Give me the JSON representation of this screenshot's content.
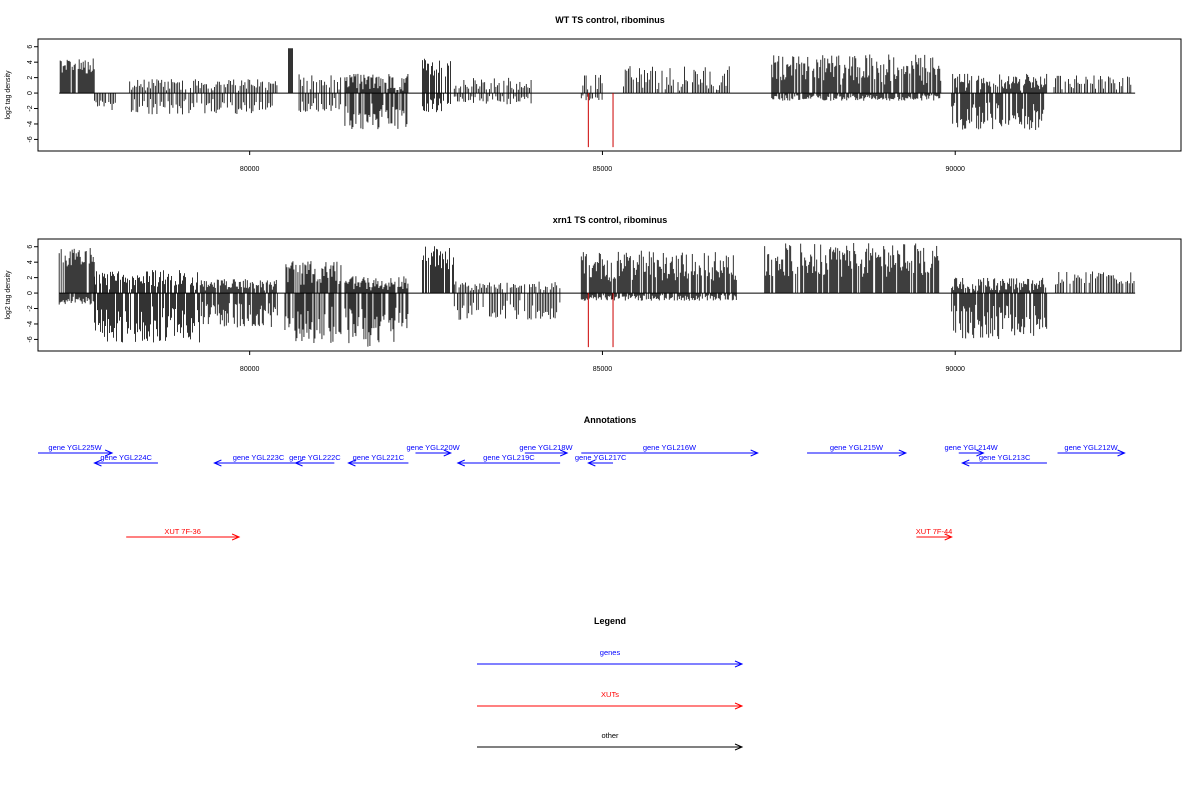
{
  "chart_data": [
    {
      "type": "bar",
      "title": "WT TS control, ribominus",
      "ylabel": "log2 tag density",
      "xlim": [
        77000,
        93200
      ],
      "ylim": [
        -7.5,
        7
      ],
      "yticks": [
        -6,
        -4,
        -2,
        0,
        2,
        4,
        6
      ],
      "xticks": [
        80000,
        85000,
        90000
      ],
      "xtick_labels": [
        "80000",
        "85000",
        "90000"
      ],
      "track_range": [
        77300,
        92550
      ],
      "segments": [
        [
          77300,
          77800,
          2.5,
          4.5,
          0
        ],
        [
          77800,
          78100,
          0,
          0,
          -2.2
        ],
        [
          78300,
          80400,
          0.3,
          1.8,
          -2.8
        ],
        [
          80550,
          80620,
          5.8,
          5.8,
          0
        ],
        [
          80700,
          81300,
          0.3,
          2.5,
          -2.5
        ],
        [
          81350,
          82250,
          0.3,
          2.5,
          -5.0
        ],
        [
          82450,
          82850,
          2.0,
          4.5,
          -2.5
        ],
        [
          82900,
          84000,
          0.3,
          2.0,
          -1.5
        ],
        [
          84700,
          85000,
          0.3,
          2.7,
          -1.0
        ],
        [
          85300,
          86800,
          0.3,
          3.5,
          0
        ],
        [
          87400,
          89800,
          1.0,
          5.0,
          -1.0
        ],
        [
          89950,
          91300,
          0.3,
          2.5,
          -4.8
        ],
        [
          91400,
          92500,
          0.3,
          2.3,
          0
        ]
      ],
      "markers": [
        84800,
        85150
      ],
      "marker_range": [
        0,
        -7
      ]
    },
    {
      "type": "bar",
      "title": "xrn1 TS control, ribominus",
      "ylabel": "log2 tag density",
      "xlim": [
        77000,
        93200
      ],
      "ylim": [
        -7.5,
        7
      ],
      "yticks": [
        -6,
        -4,
        -2,
        0,
        2,
        4,
        6
      ],
      "xticks": [
        80000,
        85000,
        90000
      ],
      "xtick_labels": [
        "80000",
        "85000",
        "90000"
      ],
      "track_range": [
        77300,
        92550
      ],
      "segments": [
        [
          77300,
          77800,
          2.5,
          6.0,
          -1.5
        ],
        [
          77800,
          79300,
          0.3,
          3.0,
          -6.5
        ],
        [
          79300,
          80400,
          0.3,
          1.8,
          -4.5
        ],
        [
          80500,
          81300,
          1.0,
          4.2,
          -6.5
        ],
        [
          81350,
          82250,
          0.3,
          2.2,
          -7.0
        ],
        [
          82450,
          82900,
          3.0,
          6.2,
          0
        ],
        [
          82900,
          84400,
          0.3,
          1.5,
          -3.5
        ],
        [
          84700,
          86900,
          1.5,
          5.5,
          -1.0
        ],
        [
          87300,
          89800,
          2.0,
          6.5,
          0
        ],
        [
          89950,
          91300,
          0.3,
          2.0,
          -6.0
        ],
        [
          91400,
          92550,
          1.0,
          3.0,
          0
        ]
      ],
      "markers": [
        84800,
        85150
      ],
      "marker_range": [
        0,
        -7
      ]
    }
  ],
  "annotations": {
    "title": "Annotations",
    "genes": [
      {
        "label": "gene YGL225W",
        "from": 77000,
        "to": 78050,
        "row": 0,
        "strand": "+"
      },
      {
        "label": "gene YGL224C",
        "from": 78700,
        "to": 77800,
        "row": 1,
        "strand": "-"
      },
      {
        "label": "gene YGL223C",
        "from": 80750,
        "to": 79500,
        "row": 1,
        "strand": "-"
      },
      {
        "label": "gene YGL222C",
        "from": 81200,
        "to": 80650,
        "row": 1,
        "strand": "-"
      },
      {
        "label": "gene YGL221C",
        "from": 82250,
        "to": 81400,
        "row": 1,
        "strand": "-"
      },
      {
        "label": "gene YGL220W",
        "from": 82350,
        "to": 82850,
        "row": 0,
        "strand": "+"
      },
      {
        "label": "gene YGL219C",
        "from": 84400,
        "to": 82950,
        "row": 1,
        "strand": "-"
      },
      {
        "label": "gene YGL218W",
        "from": 83900,
        "to": 84500,
        "row": 0,
        "strand": "+"
      },
      {
        "label": "gene YGL217C",
        "from": 85150,
        "to": 84800,
        "row": 1,
        "strand": "-"
      },
      {
        "label": "gene YGL216W",
        "from": 84700,
        "to": 87200,
        "row": 0,
        "strand": "+"
      },
      {
        "label": "gene YGL215W",
        "from": 87900,
        "to": 89300,
        "row": 0,
        "strand": "+"
      },
      {
        "label": "gene YGL214W",
        "from": 90050,
        "to": 90400,
        "row": 0,
        "strand": "+"
      },
      {
        "label": "gene YGL213C",
        "from": 91300,
        "to": 90100,
        "row": 1,
        "strand": "-"
      },
      {
        "label": "gene YGL212W",
        "from": 91450,
        "to": 92400,
        "row": 0,
        "strand": "+"
      }
    ],
    "xuts": [
      {
        "label": "XUT 7F-36",
        "from": 78250,
        "to": 79850,
        "strand": "+"
      },
      {
        "label": "XUT 7F-44",
        "from": 89450,
        "to": 89950,
        "strand": "+"
      }
    ]
  },
  "legend": {
    "title": "Legend",
    "items": [
      {
        "label": "genes",
        "color": "#0000ff"
      },
      {
        "label": "XUTs",
        "color": "#ff0000"
      },
      {
        "label": "other",
        "color": "#000000"
      }
    ]
  },
  "colors": {
    "signal": "#000000",
    "marker": "#cc0000",
    "gene": "#0000ff",
    "xut": "#ff0000"
  }
}
